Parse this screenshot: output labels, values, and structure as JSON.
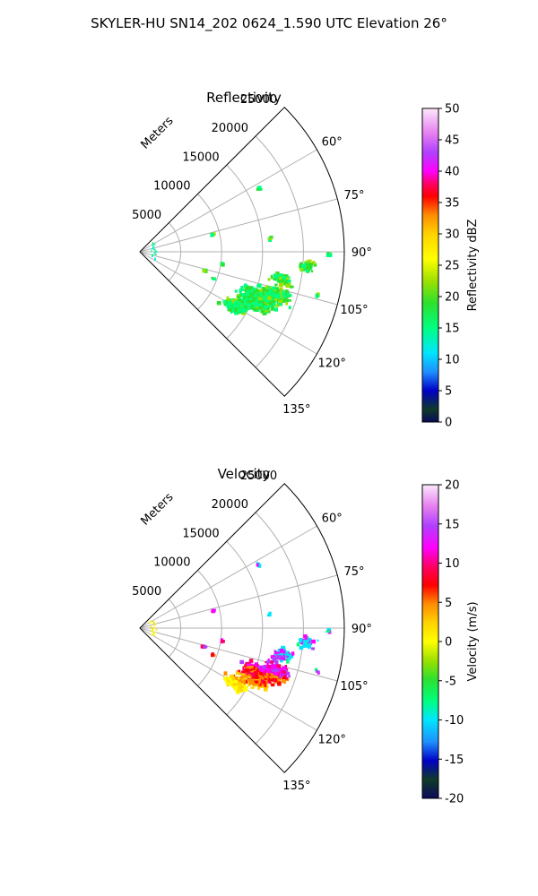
{
  "figure_title": "SKYLER-HU  SN14_202  0624_1.590 UTC Elevation 26°",
  "chart_data": [
    {
      "type": "polar-sector-scan",
      "title": "Reflectivity",
      "range_label": "Meters",
      "range_ticks": [
        "5000",
        "10000",
        "15000",
        "20000",
        "25000"
      ],
      "range_max": 25000,
      "azimuth_range": [
        45,
        135
      ],
      "azimuth_ticks": [
        "60°",
        "75°",
        "90°",
        "105°",
        "120°",
        "135°"
      ],
      "colorbar": {
        "label": "Reflectivity dBZ",
        "min": 0,
        "max": 50,
        "ticks": [
          "0",
          "5",
          "10",
          "15",
          "20",
          "25",
          "30",
          "35",
          "40",
          "45",
          "50"
        ]
      },
      "data_summary": "Echoes mostly 12–25 dBZ, main cluster between 104°–125° azimuth at 13–22 km range, scattered returns near 60°–100°"
    },
    {
      "type": "polar-sector-scan",
      "title": "Velocity",
      "range_label": "Meters",
      "range_ticks": [
        "5000",
        "10000",
        "15000",
        "20000",
        "25000"
      ],
      "range_max": 25000,
      "azimuth_range": [
        45,
        135
      ],
      "azimuth_ticks": [
        "60°",
        "75°",
        "90°",
        "105°",
        "120°",
        "135°"
      ],
      "colorbar": {
        "label": "Velocity (m/s)",
        "min": -20,
        "max": 20,
        "ticks": [
          "-20",
          "-15",
          "-10",
          "-5",
          "0",
          "5",
          "10",
          "15",
          "20"
        ]
      },
      "data_summary": "Main cluster shows +10 to +17 m/s near 105°–112°, +5 to +10 m/s at 112°–118°, 0 to +5 m/s at 118°–125°; small −10 m/s patch near 100°"
    }
  ]
}
